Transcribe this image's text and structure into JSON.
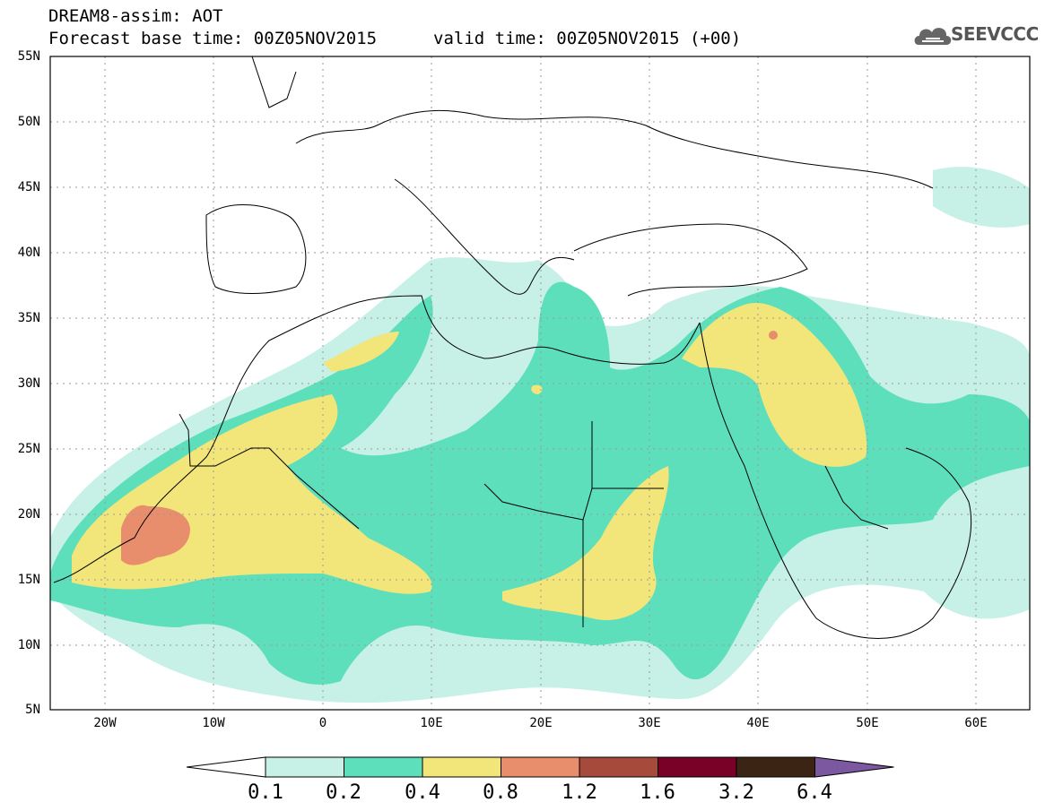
{
  "header": {
    "title": "DREAM8-assim: AOT",
    "base_time": "Forecast base time: 00Z05NOV2015",
    "valid_time": "valid time: 00Z05NOV2015 (+00)",
    "logo_text": "SEEVCCC"
  },
  "map": {
    "lat_labels": [
      "55N",
      "50N",
      "45N",
      "40N",
      "35N",
      "30N",
      "25N",
      "20N",
      "15N",
      "10N",
      "5N"
    ],
    "lon_labels": [
      "20W",
      "10W",
      "0",
      "10E",
      "20E",
      "30E",
      "40E",
      "50E",
      "60E"
    ]
  },
  "colorbar": {
    "labels": [
      "0.1",
      "0.2",
      "0.4",
      "0.8",
      "1.2",
      "1.6",
      "3.2",
      "6.4"
    ],
    "colors": [
      "#ffffff",
      "#c7f0e7",
      "#5ddfbc",
      "#f2e57a",
      "#e88e6c",
      "#a64b3c",
      "#790027",
      "#3b2413",
      "#7c58a0"
    ]
  },
  "icons": {
    "logo": "cloud-logo-icon"
  }
}
